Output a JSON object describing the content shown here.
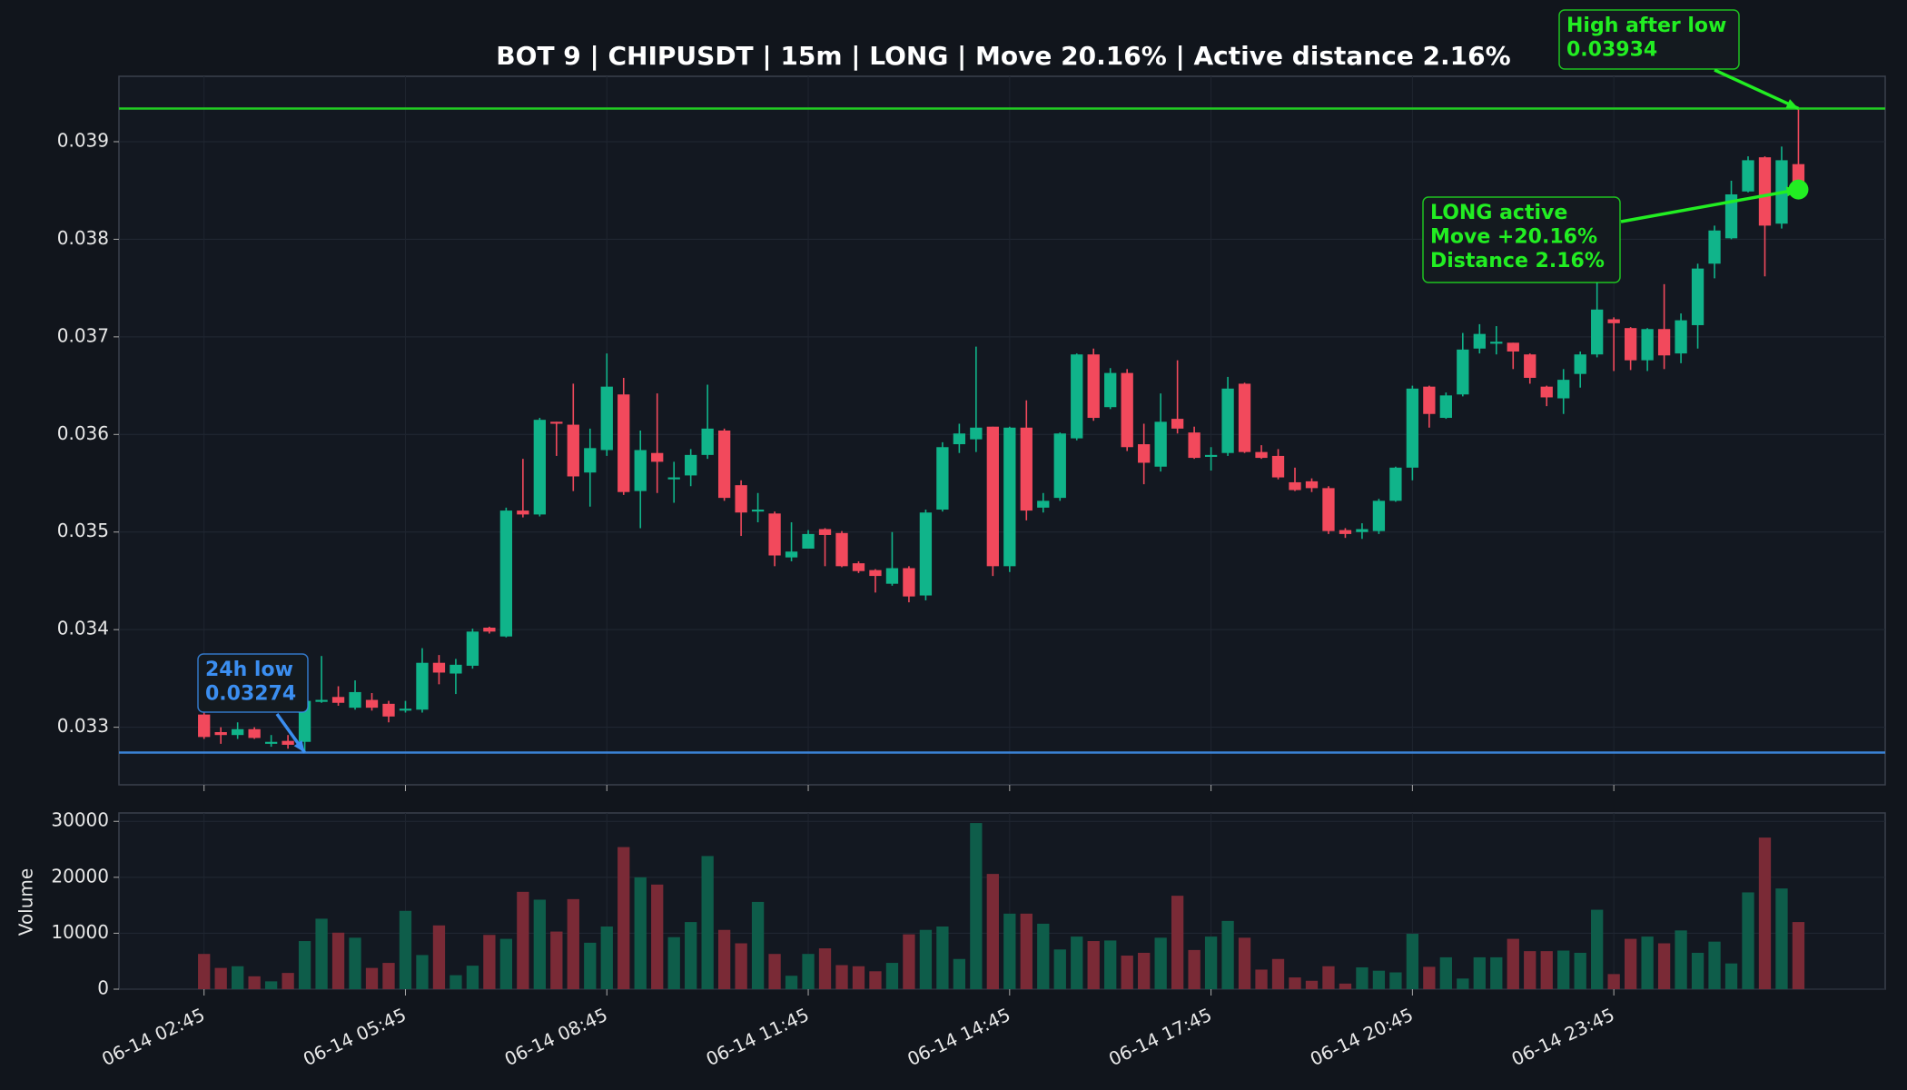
{
  "chart_data": [
    {
      "type": "candlestick",
      "title": "BOT 9 | CHIPUSDT | 15m | LONG | Move 20.16% | Active distance 2.16%",
      "open": [
        0.03313,
        0.03295,
        0.03292,
        0.03298,
        0.03283,
        0.03286,
        0.03285,
        0.03326,
        0.03331,
        0.0332,
        0.03328,
        0.03324,
        0.03317,
        0.03318,
        0.03366,
        0.03355,
        0.03363,
        0.03402,
        0.03393,
        0.03522,
        0.03518,
        0.03613,
        0.0361,
        0.03561,
        0.03584,
        0.03641,
        0.03542,
        0.03581,
        0.03554,
        0.03558,
        0.03579,
        0.03604,
        0.03548,
        0.03521,
        0.03519,
        0.03474,
        0.03483,
        0.03503,
        0.03499,
        0.03468,
        0.03461,
        0.03447,
        0.03463,
        0.03435,
        0.03523,
        0.0359,
        0.03595,
        0.03608,
        0.03465,
        0.03607,
        0.03525,
        0.03535,
        0.03596,
        0.03682,
        0.03628,
        0.03663,
        0.0359,
        0.03567,
        0.03616,
        0.03602,
        0.03577,
        0.03581,
        0.03652,
        0.03582,
        0.03578,
        0.03551,
        0.03552,
        0.03545,
        0.03502,
        0.035,
        0.03501,
        0.03532,
        0.03566,
        0.03649,
        0.03617,
        0.03641,
        0.03688,
        0.03693,
        0.03694,
        0.03682,
        0.03649,
        0.03637,
        0.03662,
        0.03682,
        0.03718,
        0.03709,
        0.03676,
        0.03708,
        0.03683,
        0.03712,
        0.03775,
        0.03801,
        0.03849,
        0.03884,
        0.03816,
        0.03877
      ],
      "high": [
        0.03315,
        0.033,
        0.03305,
        0.033,
        0.03292,
        0.03292,
        0.0333,
        0.03373,
        0.03342,
        0.03348,
        0.03335,
        0.03327,
        0.03327,
        0.03381,
        0.03374,
        0.0337,
        0.03401,
        0.03403,
        0.03525,
        0.03575,
        0.03617,
        0.03613,
        0.03652,
        0.03606,
        0.03683,
        0.03658,
        0.03604,
        0.03642,
        0.03572,
        0.03585,
        0.03651,
        0.03606,
        0.03553,
        0.0354,
        0.03521,
        0.0351,
        0.03502,
        0.03504,
        0.03501,
        0.0347,
        0.03462,
        0.035,
        0.03465,
        0.03523,
        0.03592,
        0.03611,
        0.0369,
        0.03608,
        0.03608,
        0.03635,
        0.0354,
        0.03602,
        0.03683,
        0.03688,
        0.03668,
        0.03667,
        0.03611,
        0.03642,
        0.03676,
        0.03608,
        0.03587,
        0.03659,
        0.03653,
        0.03589,
        0.03585,
        0.03566,
        0.03555,
        0.03547,
        0.03504,
        0.03509,
        0.03534,
        0.03567,
        0.0365,
        0.0365,
        0.03643,
        0.03704,
        0.03713,
        0.03711,
        0.03694,
        0.03683,
        0.0365,
        0.03667,
        0.03685,
        0.03759,
        0.0372,
        0.0371,
        0.03709,
        0.03754,
        0.03724,
        0.03775,
        0.03814,
        0.0386,
        0.03885,
        0.03885,
        0.03895,
        0.03934
      ],
      "low": [
        0.03288,
        0.03283,
        0.03288,
        0.03288,
        0.0328,
        0.03278,
        0.03274,
        0.03325,
        0.03322,
        0.03318,
        0.03317,
        0.03305,
        0.03315,
        0.03315,
        0.03344,
        0.03334,
        0.0336,
        0.03396,
        0.03392,
        0.03515,
        0.03516,
        0.03578,
        0.03542,
        0.03526,
        0.03578,
        0.03538,
        0.03504,
        0.0354,
        0.0353,
        0.03547,
        0.03575,
        0.03532,
        0.03496,
        0.0351,
        0.03465,
        0.0347,
        0.03489,
        0.03465,
        0.03464,
        0.03458,
        0.03438,
        0.03445,
        0.03428,
        0.0343,
        0.03521,
        0.03581,
        0.03582,
        0.03455,
        0.03459,
        0.03512,
        0.0352,
        0.03532,
        0.03594,
        0.03614,
        0.03626,
        0.03583,
        0.03549,
        0.03562,
        0.03601,
        0.03575,
        0.03563,
        0.03578,
        0.03581,
        0.03575,
        0.03554,
        0.03542,
        0.03541,
        0.03498,
        0.03494,
        0.03493,
        0.03498,
        0.03531,
        0.03553,
        0.03607,
        0.03616,
        0.03639,
        0.03683,
        0.03682,
        0.03667,
        0.03652,
        0.03629,
        0.03621,
        0.03648,
        0.03679,
        0.03665,
        0.03666,
        0.03665,
        0.03667,
        0.03673,
        0.03688,
        0.0376,
        0.038,
        0.03848,
        0.03762,
        0.03811,
        0.03845
      ],
      "close": [
        0.0329,
        0.03292,
        0.03298,
        0.03289,
        0.03285,
        0.03282,
        0.03327,
        0.03328,
        0.03325,
        0.03336,
        0.0332,
        0.03311,
        0.03319,
        0.03366,
        0.03356,
        0.03364,
        0.03398,
        0.03398,
        0.03522,
        0.03518,
        0.03615,
        0.03611,
        0.03557,
        0.03586,
        0.03649,
        0.03541,
        0.03584,
        0.03572,
        0.03556,
        0.03579,
        0.03606,
        0.03535,
        0.0352,
        0.03523,
        0.03476,
        0.0348,
        0.03498,
        0.03497,
        0.03465,
        0.0346,
        0.03455,
        0.03463,
        0.03434,
        0.0352,
        0.03587,
        0.03601,
        0.03607,
        0.03465,
        0.03607,
        0.03522,
        0.03532,
        0.03601,
        0.03682,
        0.03617,
        0.03663,
        0.03587,
        0.03571,
        0.03613,
        0.03606,
        0.03576,
        0.03579,
        0.03647,
        0.03582,
        0.03576,
        0.03556,
        0.03543,
        0.03545,
        0.03501,
        0.03498,
        0.03503,
        0.03532,
        0.03566,
        0.03647,
        0.03621,
        0.0364,
        0.03687,
        0.03703,
        0.03695,
        0.03685,
        0.03658,
        0.03638,
        0.03656,
        0.03682,
        0.03728,
        0.03714,
        0.03676,
        0.03708,
        0.03681,
        0.03717,
        0.0377,
        0.03809,
        0.03846,
        0.03881,
        0.03814,
        0.03881,
        0.03851
      ],
      "up_color": "#10b48a",
      "down_color": "#f2495c",
      "ylim": [
        0.03241,
        0.03967
      ],
      "yticks": [
        0.033,
        0.034,
        0.035,
        0.036,
        0.037,
        0.038,
        0.039
      ],
      "grid": true,
      "hlines": [
        {
          "value": 0.03934,
          "color": "#22cc22"
        },
        {
          "value": 0.03274,
          "color": "#3b82d6"
        }
      ],
      "marker_color": "#22ee22",
      "annotations": [
        {
          "text": [
            "24h low",
            "0.03274"
          ],
          "color": "#3b8ef0"
        },
        {
          "text": [
            "LONG active",
            "Move +20.16%",
            "Distance 2.16%"
          ],
          "color": "#22ee22"
        },
        {
          "text": [
            "High after low",
            "0.03934"
          ],
          "color": "#22ee22"
        }
      ]
    },
    {
      "type": "bar",
      "ylabel": "Volume",
      "categories": [
        "06-14 02:45",
        null,
        null,
        null,
        null,
        null,
        null,
        null,
        null,
        null,
        null,
        null,
        "06-14 05:45",
        null,
        null,
        null,
        null,
        null,
        null,
        null,
        null,
        null,
        null,
        null,
        "06-14 08:45",
        null,
        null,
        null,
        null,
        null,
        null,
        null,
        null,
        null,
        null,
        null,
        "06-14 11:45",
        null,
        null,
        null,
        null,
        null,
        null,
        null,
        null,
        null,
        null,
        null,
        "06-14 14:45",
        null,
        null,
        null,
        null,
        null,
        null,
        null,
        null,
        null,
        null,
        null,
        "06-14 17:45",
        null,
        null,
        null,
        null,
        null,
        null,
        null,
        null,
        null,
        null,
        null,
        "06-14 20:45",
        null,
        null,
        null,
        null,
        null,
        null,
        null,
        null,
        null,
        null,
        null,
        "06-14 23:45",
        null,
        null,
        null,
        null,
        null,
        null,
        null,
        null,
        null,
        null,
        null
      ],
      "values": [
        6300,
        3800,
        4100,
        2300,
        1400,
        2900,
        8600,
        12600,
        10100,
        9200,
        3800,
        4700,
        14000,
        6100,
        11400,
        2500,
        4200,
        9700,
        9000,
        17400,
        16000,
        10300,
        16100,
        8300,
        11200,
        25400,
        20000,
        18700,
        9300,
        12000,
        23800,
        10600,
        8200,
        15600,
        6300,
        2400,
        6300,
        7300,
        4300,
        4100,
        3200,
        4700,
        9800,
        10600,
        11200,
        5400,
        29700,
        20600,
        13500,
        13500,
        11700,
        7100,
        9400,
        8600,
        8700,
        6000,
        6500,
        9200,
        16700,
        7000,
        9400,
        12200,
        9200,
        3500,
        5400,
        2100,
        1500,
        4100,
        1000,
        3900,
        3300,
        3000,
        9900,
        4000,
        5700,
        1900,
        5700,
        5700,
        9000,
        6800,
        6800,
        6900,
        6500,
        14200,
        2700,
        9000,
        9400,
        8200,
        10500,
        6500,
        8500,
        4600,
        17300,
        27100,
        18000,
        12000
      ],
      "up_color": "#0e5d4a",
      "down_color": "#7a2a36",
      "ylim": [
        0,
        31500
      ],
      "yticks": [
        0,
        10000,
        20000,
        30000
      ],
      "grid": true
    }
  ]
}
